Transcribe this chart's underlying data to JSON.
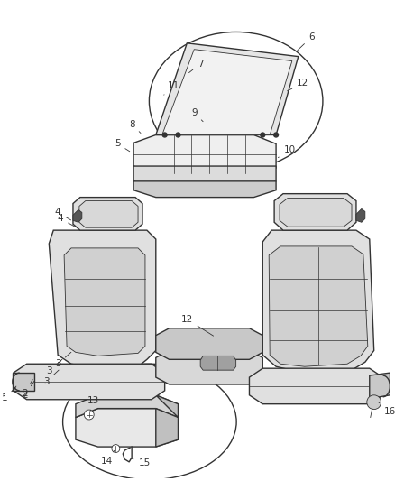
{
  "bg_color": "#ffffff",
  "line_color": "#333333",
  "label_fontsize": 7.5,
  "fig_width": 4.38,
  "fig_height": 5.33,
  "dpi": 100
}
